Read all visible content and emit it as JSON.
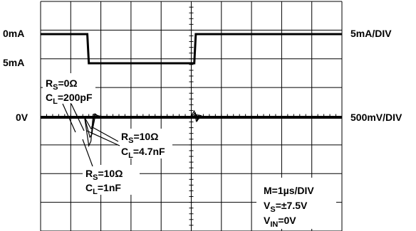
{
  "chart_data": {
    "type": "line",
    "grid": true,
    "time_per_div_us": 1,
    "divisions": {
      "x": 10,
      "y": 8
    },
    "left_labels": [
      "0mA",
      "5mA",
      "0V"
    ],
    "right_labels": [
      "5mA/DIV",
      "500mV/DIV"
    ],
    "annotations": {
      "a0": {
        "rs": "R",
        "rs_sub": "S",
        "rs_val": "=0Ω",
        "cl": "C",
        "cl_sub": "L",
        "cl_val": "=200pF"
      },
      "a1": {
        "rs": "R",
        "rs_sub": "S",
        "rs_val": "=10Ω",
        "cl": "C",
        "cl_sub": "L",
        "cl_val": "=4.7nF"
      },
      "a2": {
        "rs": "R",
        "rs_sub": "S",
        "rs_val": "=10Ω",
        "cl": "C",
        "cl_sub": "L",
        "cl_val": "=1nF"
      }
    },
    "conditions": {
      "m": "M=1µs/DIV",
      "vs_main": "V",
      "vs_sub": "S",
      "vs_val": "=±7.5V",
      "vin_main": "V",
      "vin_sub": "IN",
      "vin_val": "=0V"
    },
    "current_trace": {
      "unit": "mA",
      "x_div": [
        0,
        1.55,
        1.6,
        5.1,
        5.15,
        10
      ],
      "y": [
        0,
        0,
        5,
        5,
        0,
        0
      ]
    },
    "voltage_traces": [
      {
        "edge_div": 1.6,
        "amplitude_mv": [
          -500,
          -420,
          50,
          60,
          30
        ]
      },
      {
        "edge_div": 5.1,
        "amplitude_mv": [
          110,
          -80,
          40,
          30,
          10
        ]
      }
    ]
  }
}
